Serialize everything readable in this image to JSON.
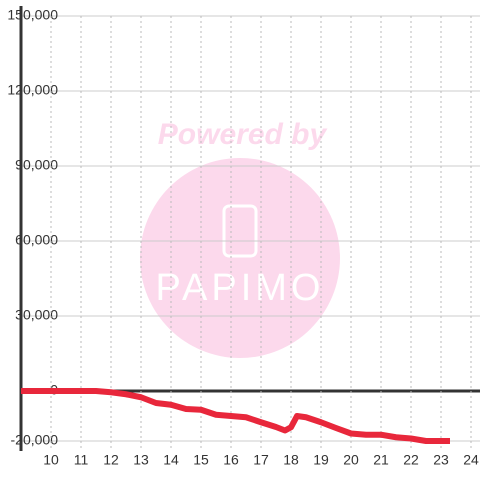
{
  "chart_data": {
    "type": "line",
    "watermark": {
      "title": "Powered by",
      "brand": "PAPIMO"
    },
    "x": [
      9,
      11.5,
      12,
      12.5,
      13,
      13.5,
      14,
      14.5,
      15,
      15.5,
      16,
      16.5,
      17,
      17.5,
      17.8,
      18,
      18.2,
      18.5,
      19,
      19.5,
      20,
      20.5,
      21,
      21.5,
      22,
      22.5,
      23.3
    ],
    "series": [
      {
        "color": "#e8273b",
        "values": [
          0,
          0,
          -500,
          -1300,
          -2500,
          -4800,
          -5500,
          -7200,
          -7500,
          -9500,
          -10000,
          -10500,
          -12500,
          -14400,
          -15800,
          -14500,
          -10000,
          -10500,
          -12500,
          -14800,
          -17000,
          -17500,
          -17500,
          -18500,
          -19000,
          -20000,
          -20000
        ]
      }
    ],
    "xlim": [
      9,
      24.3
    ],
    "xticks": [
      10,
      11,
      12,
      13,
      14,
      15,
      16,
      17,
      18,
      19,
      20,
      21,
      22,
      23,
      24
    ],
    "ylim": [
      -24000,
      150000
    ],
    "yticks": [
      {
        "value": -20000,
        "label": "-20,000"
      },
      0,
      {
        "value": 30000,
        "label": "30,000"
      },
      {
        "value": 60000,
        "label": "60,000"
      },
      {
        "value": 90000,
        "label": "90,000"
      },
      {
        "value": 120000,
        "label": "120,000"
      },
      {
        "value": 150000,
        "label": "150,000"
      }
    ],
    "grid": true
  }
}
